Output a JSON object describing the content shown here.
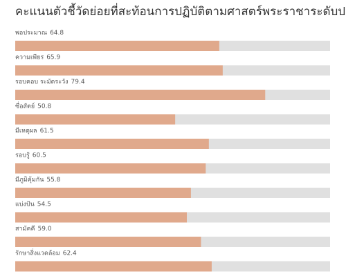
{
  "chart_data": {
    "type": "bar",
    "title": "คะแนนตัวชี้วัดย่อยที่สะท้อนการปฏิบัติตามศาสตร์พระราชาระดับประเทศ",
    "categories": [
      "พอประมาณ",
      "ความเพียร",
      "รอบคอบ ระมัดระวัง",
      "ซื่อสัตย์",
      "มีเหตุผล",
      "รอบรู้",
      "มีภูมิคุ้มกัน",
      "แบ่งปัน",
      "สามัคคี",
      "รักษาสิ่งแวดล้อม"
    ],
    "values": [
      64.8,
      65.9,
      79.4,
      50.8,
      61.5,
      60.5,
      55.8,
      54.5,
      59.0,
      62.4
    ],
    "value_labels": [
      "64.8",
      "65.9",
      "79.4",
      "50.8",
      "61.5",
      "60.5",
      "55.8",
      "54.5",
      "59.0",
      "62.4"
    ],
    "xlim": [
      0,
      100
    ],
    "color": "#e0a98c"
  }
}
